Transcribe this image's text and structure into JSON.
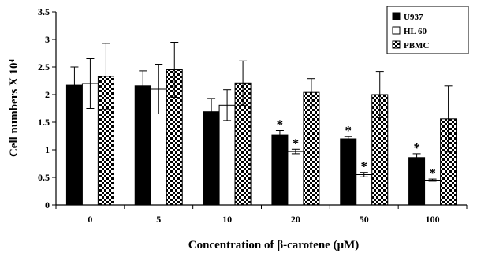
{
  "chart_data": {
    "type": "bar",
    "xlabel": "Concentration of β-carotene (μM)",
    "ylabel": "Cell numbers X 10⁴",
    "ylim": [
      0,
      3.5
    ],
    "yticks": [
      "0",
      "0.5",
      "1",
      "1.5",
      "2",
      "2.5",
      "3",
      "3.5"
    ],
    "categories": [
      "0",
      "5",
      "10",
      "20",
      "50",
      "100"
    ],
    "legend_position": "top-right",
    "series": [
      {
        "name": "U937",
        "fill": "solid-black",
        "values": [
          2.17,
          2.16,
          1.69,
          1.27,
          1.2,
          0.86
        ],
        "errors": [
          0.33,
          0.27,
          0.24,
          0.08,
          0.04,
          0.07
        ],
        "significant": [
          false,
          false,
          false,
          true,
          true,
          true
        ]
      },
      {
        "name": "HL 60",
        "fill": "white",
        "values": [
          2.2,
          2.1,
          1.81,
          0.97,
          0.55,
          0.45
        ],
        "errors": [
          0.45,
          0.45,
          0.28,
          0.04,
          0.04,
          0.02
        ],
        "significant": [
          false,
          false,
          false,
          true,
          true,
          true
        ]
      },
      {
        "name": "PBMC",
        "fill": "checkered",
        "values": [
          2.33,
          2.45,
          2.21,
          2.04,
          2.0,
          1.56
        ],
        "errors": [
          0.6,
          0.5,
          0.4,
          0.25,
          0.42,
          0.6
        ],
        "significant": [
          false,
          false,
          false,
          false,
          false,
          false
        ]
      }
    ],
    "significance_marker": "*"
  },
  "colors": {
    "bar_black": "#000000",
    "bar_white": "#ffffff",
    "axis": "#000000"
  }
}
